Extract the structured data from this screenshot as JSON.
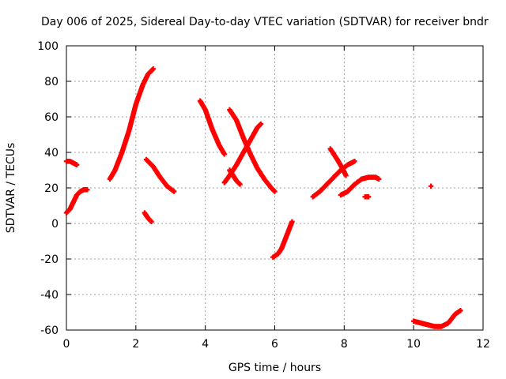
{
  "chart_data": {
    "type": "scatter",
    "title": "Day 006 of 2025, Sidereal Day-to-day VTEC variation (SDTVAR) for receiver bndr",
    "xlabel": "GPS time / hours",
    "ylabel": "SDTVAR / TECUs",
    "xlim": [
      0,
      12
    ],
    "ylim": [
      -60,
      100
    ],
    "x_ticks": [
      0,
      2,
      4,
      6,
      8,
      10,
      12
    ],
    "y_ticks": [
      -60,
      -40,
      -20,
      0,
      20,
      40,
      60,
      80,
      100
    ],
    "grid": true,
    "marker": "+",
    "color": "#ff0000",
    "segments": [
      {
        "x": [
          0.0,
          0.1,
          0.2,
          0.3,
          0.4,
          0.5,
          0.6
        ],
        "y": [
          6,
          8,
          12,
          16,
          18,
          19,
          19
        ]
      },
      {
        "x": [
          0.0,
          0.1,
          0.2,
          0.3
        ],
        "y": [
          35,
          35,
          34,
          33
        ]
      },
      {
        "x": [
          1.25,
          1.4,
          1.6,
          1.8,
          2.0,
          2.2,
          2.35,
          2.5
        ],
        "y": [
          25,
          30,
          40,
          52,
          67,
          78,
          84,
          87
        ]
      },
      {
        "x": [
          2.25,
          2.35,
          2.45
        ],
        "y": [
          6,
          3,
          1
        ]
      },
      {
        "x": [
          2.3,
          2.5,
          2.7,
          2.9,
          3.1
        ],
        "y": [
          36,
          32,
          26,
          21,
          18
        ]
      },
      {
        "x": [
          3.85,
          4.0,
          4.2,
          4.4,
          4.55
        ],
        "y": [
          69,
          64,
          53,
          44,
          39
        ]
      },
      {
        "x": [
          4.55,
          4.7,
          4.9,
          5.1,
          5.3,
          5.5,
          5.6
        ],
        "y": [
          23,
          27,
          33,
          40,
          47,
          54,
          56
        ]
      },
      {
        "x": [
          4.7,
          4.8,
          4.9,
          5.0
        ],
        "y": [
          30,
          27,
          24,
          22
        ]
      },
      {
        "x": [
          4.7,
          4.9,
          5.1,
          5.3,
          5.5,
          5.7,
          5.9,
          6.0
        ],
        "y": [
          64,
          58,
          48,
          39,
          31,
          25,
          20,
          18
        ]
      },
      {
        "x": [
          5.95,
          6.1,
          6.2,
          6.3,
          6.4,
          6.5
        ],
        "y": [
          -19,
          -17,
          -14,
          -9,
          -4,
          1
        ]
      },
      {
        "x": [
          7.1,
          7.3,
          7.5,
          7.7,
          7.9,
          8.1,
          8.3
        ],
        "y": [
          15,
          18,
          22,
          26,
          30,
          33,
          35
        ]
      },
      {
        "x": [
          7.6,
          7.8,
          7.95,
          8.05
        ],
        "y": [
          42,
          36,
          31,
          27
        ]
      },
      {
        "x": [
          7.9,
          8.1,
          8.3,
          8.5,
          8.7,
          8.9,
          9.0
        ],
        "y": [
          16,
          18,
          22,
          25,
          26,
          26,
          25
        ]
      },
      {
        "x": [
          8.6,
          8.7
        ],
        "y": [
          15,
          15
        ]
      },
      {
        "x": [
          10.5
        ],
        "y": [
          21
        ]
      },
      {
        "x": [
          10.0,
          10.2,
          10.4,
          10.6,
          10.8,
          11.0,
          11.2,
          11.35
        ],
        "y": [
          -55,
          -56,
          -57,
          -58,
          -58,
          -56,
          -51,
          -49
        ]
      }
    ]
  }
}
